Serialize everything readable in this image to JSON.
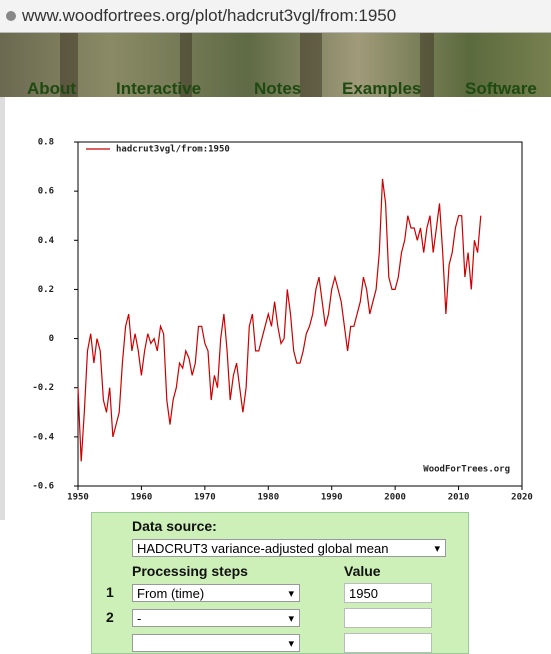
{
  "url": "www.woodfortrees.org/plot/hadcrut3vgl/from:1950",
  "nav": [
    "About",
    "Interactive",
    "Notes",
    "Examples",
    "Software"
  ],
  "chart_data": {
    "type": "line",
    "x": [
      1950.0,
      1950.5,
      1951.0,
      1951.5,
      1952.0,
      1952.5,
      1953.0,
      1953.5,
      1954.0,
      1954.5,
      1955.0,
      1955.5,
      1956.0,
      1956.5,
      1957.0,
      1957.5,
      1958.0,
      1958.5,
      1959.0,
      1959.5,
      1960.0,
      1960.5,
      1961.0,
      1961.5,
      1962.0,
      1962.5,
      1963.0,
      1963.5,
      1964.0,
      1964.5,
      1965.0,
      1965.5,
      1966.0,
      1966.5,
      1967.0,
      1967.5,
      1968.0,
      1968.5,
      1969.0,
      1969.5,
      1970.0,
      1970.5,
      1971.0,
      1971.5,
      1972.0,
      1972.5,
      1973.0,
      1973.5,
      1974.0,
      1974.5,
      1975.0,
      1975.5,
      1976.0,
      1976.5,
      1977.0,
      1977.5,
      1978.0,
      1978.5,
      1979.0,
      1979.5,
      1980.0,
      1980.5,
      1981.0,
      1981.5,
      1982.0,
      1982.5,
      1983.0,
      1983.5,
      1984.0,
      1984.5,
      1985.0,
      1985.5,
      1986.0,
      1986.5,
      1987.0,
      1987.5,
      1988.0,
      1988.5,
      1989.0,
      1989.5,
      1990.0,
      1990.5,
      1991.0,
      1991.5,
      1992.0,
      1992.5,
      1993.0,
      1993.5,
      1994.0,
      1994.5,
      1995.0,
      1995.5,
      1996.0,
      1996.5,
      1997.0,
      1997.5,
      1998.0,
      1998.5,
      1999.0,
      1999.5,
      2000.0,
      2000.5,
      2001.0,
      2001.5,
      2002.0,
      2002.5,
      2003.0,
      2003.5,
      2004.0,
      2004.5,
      2005.0,
      2005.5,
      2006.0,
      2006.5,
      2007.0,
      2007.5,
      2008.0,
      2008.5,
      2009.0,
      2009.5,
      2010.0,
      2010.5,
      2011.0,
      2011.5,
      2012.0,
      2012.5,
      2013.0,
      2013.5
    ],
    "series": [
      {
        "name": "hadcrut3vgl/from:1950",
        "color": "#cc0000",
        "values": [
          -0.2,
          -0.5,
          -0.3,
          -0.05,
          0.02,
          -0.1,
          0.0,
          -0.05,
          -0.25,
          -0.3,
          -0.2,
          -0.4,
          -0.35,
          -0.3,
          -0.1,
          0.05,
          0.1,
          -0.05,
          0.02,
          -0.05,
          -0.15,
          -0.05,
          0.02,
          -0.02,
          0.0,
          -0.05,
          0.05,
          0.02,
          -0.25,
          -0.35,
          -0.25,
          -0.2,
          -0.1,
          -0.12,
          -0.05,
          -0.08,
          -0.15,
          -0.1,
          0.05,
          0.05,
          -0.02,
          -0.05,
          -0.25,
          -0.15,
          -0.2,
          0.0,
          0.1,
          -0.05,
          -0.25,
          -0.15,
          -0.1,
          -0.2,
          -0.3,
          -0.2,
          0.05,
          0.1,
          -0.05,
          -0.05,
          0.0,
          0.05,
          0.1,
          0.05,
          0.15,
          0.05,
          -0.02,
          0.0,
          0.2,
          0.1,
          -0.05,
          -0.1,
          -0.1,
          -0.05,
          0.02,
          0.05,
          0.1,
          0.2,
          0.25,
          0.15,
          0.05,
          0.1,
          0.2,
          0.25,
          0.2,
          0.15,
          0.05,
          -0.05,
          0.05,
          0.05,
          0.1,
          0.15,
          0.25,
          0.2,
          0.1,
          0.15,
          0.2,
          0.35,
          0.65,
          0.55,
          0.25,
          0.2,
          0.2,
          0.25,
          0.35,
          0.4,
          0.5,
          0.45,
          0.45,
          0.4,
          0.45,
          0.35,
          0.45,
          0.5,
          0.35,
          0.45,
          0.55,
          0.35,
          0.1,
          0.3,
          0.35,
          0.45,
          0.5,
          0.5,
          0.25,
          0.35,
          0.2,
          0.4,
          0.35,
          0.5
        ]
      }
    ],
    "xlim": [
      1950,
      2020
    ],
    "xticks": [
      1950,
      1960,
      1970,
      1980,
      1990,
      2000,
      2010,
      2020
    ],
    "ylim": [
      -0.6,
      0.8
    ],
    "yticks": [
      -0.6,
      -0.4,
      -0.2,
      0,
      0.2,
      0.4,
      0.6,
      0.8
    ],
    "annotation": "WoodForTrees.org",
    "legend": "upper left"
  },
  "form": {
    "data_source_label": "Data source:",
    "data_source": "HADCRUT3 variance-adjusted global mean",
    "steps_header": "Processing steps",
    "value_header": "Value",
    "rows": [
      {
        "n": "1",
        "step": "From (time)",
        "value": "1950"
      },
      {
        "n": "2",
        "step": "-"
      }
    ]
  }
}
